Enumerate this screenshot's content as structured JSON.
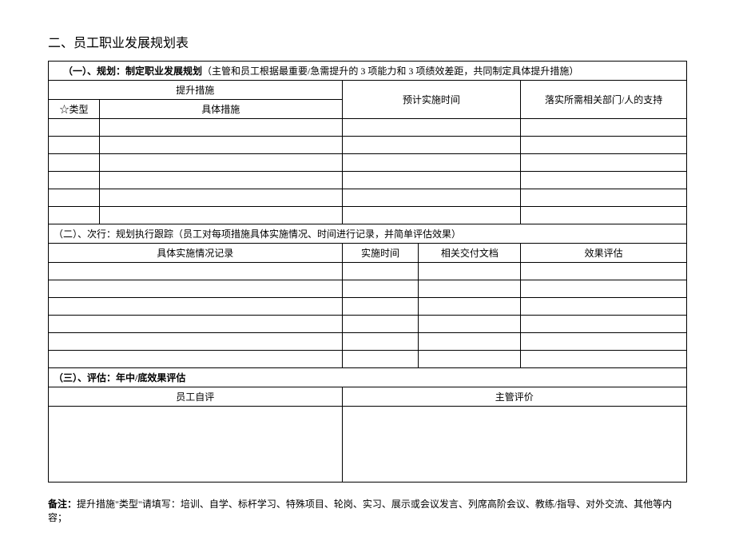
{
  "title": "二、员工职业发展规划表",
  "section1": {
    "label_bold": "（一）、规划：制定职业发展规划",
    "label_sub": "（主管和员工根据最重要/急需提升的 3 项能力和 3 项绩效差距，共同制定具体提升措施）",
    "header_measure": "提升措施",
    "header_type": "☆类型",
    "header_detail": "具体措施",
    "header_time": "预计实施时间",
    "header_support": "落实所需相关部门/人的支持"
  },
  "section2": {
    "label": "（二）、次行：规划执行跟踪（员工对每项措施具体实施情况、时间进行记录，并简单评估效果）",
    "header_record": "具体实施情况记录",
    "header_time": "实施时间",
    "header_doc": "相关交付文档",
    "header_eval": "效果评估"
  },
  "section3": {
    "label": "（三）、评估：年中/底效果评估",
    "header_self": "员工自评",
    "header_mgr": "主管评价"
  },
  "note": {
    "label": "备注：",
    "text": "提升措施\"类型\"请填写：培训、自学、标杆学习、特殊项目、轮岗、实习、展示或会议发言、列席高阶会议、教练/指导、对外交流、其他等内容；"
  },
  "style": {
    "border_color": "#000000",
    "background_color": "#ffffff",
    "text_color": "#000000",
    "title_fontsize": 16,
    "body_fontsize": 12
  }
}
